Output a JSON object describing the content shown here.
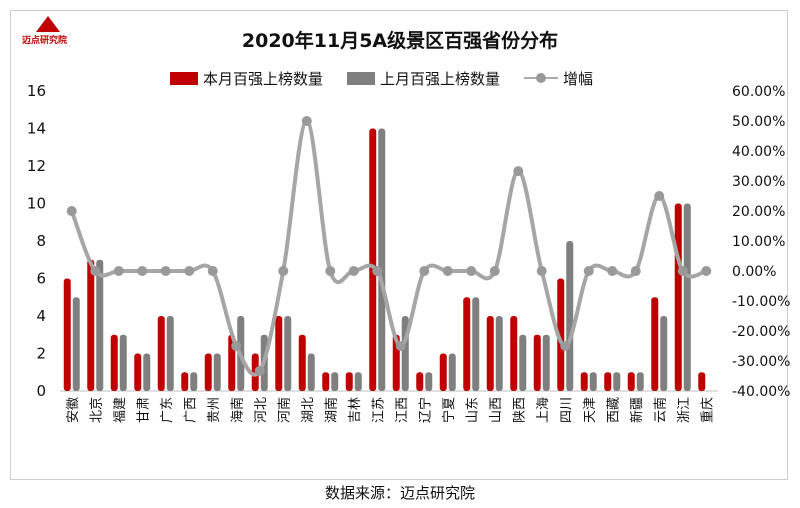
{
  "header": {
    "title": "2020年11月5A级景区百强省份分布",
    "logo_text": "迈点研究院"
  },
  "footer": {
    "source": "数据来源：迈点研究院"
  },
  "colors": {
    "current": "#c00000",
    "previous": "#7f7f7f",
    "growth_line": "#a6a6a6",
    "growth_marker": "#999999"
  },
  "chart_data": {
    "type": "bar",
    "title": "2020年11月5A级景区百强省份分布",
    "categories": [
      "安徽",
      "北京",
      "福建",
      "甘肃",
      "广东",
      "广西",
      "贵州",
      "海南",
      "河北",
      "河南",
      "湖北",
      "湖南",
      "吉林",
      "江苏",
      "江西",
      "辽宁",
      "宁夏",
      "山东",
      "山西",
      "陕西",
      "上海",
      "四川",
      "天津",
      "西藏",
      "新疆",
      "云南",
      "浙江",
      "重庆"
    ],
    "series": [
      {
        "name": "本月百强上榜数量",
        "type": "bar",
        "axis": "left",
        "values": [
          6,
          7,
          3,
          2,
          4,
          1,
          2,
          3,
          2,
          4,
          3,
          1,
          1,
          14,
          3,
          1,
          2,
          5,
          4,
          4,
          3,
          6,
          1,
          1,
          1,
          5,
          10,
          1
        ]
      },
      {
        "name": "上月百强上榜数量",
        "type": "bar",
        "axis": "left",
        "values": [
          5,
          7,
          3,
          2,
          4,
          1,
          2,
          4,
          3,
          4,
          2,
          1,
          1,
          14,
          4,
          1,
          2,
          5,
          4,
          3,
          3,
          8,
          1,
          1,
          1,
          4,
          10,
          0
        ]
      },
      {
        "name": "增幅",
        "type": "line",
        "axis": "right",
        "values": [
          0.2,
          0.0,
          0.0,
          0.0,
          0.0,
          0.0,
          0.0,
          -0.25,
          -0.333,
          0.0,
          0.5,
          0.0,
          0.0,
          0.0,
          -0.25,
          0.0,
          0.0,
          0.0,
          0.0,
          0.333,
          0.0,
          -0.25,
          0.0,
          0.0,
          0.0,
          0.25,
          0.0,
          0.0
        ]
      }
    ],
    "y_left": {
      "min": 0,
      "max": 16,
      "ticks": [
        "0",
        "2",
        "4",
        "6",
        "8",
        "10",
        "12",
        "14",
        "16"
      ]
    },
    "y_right": {
      "min": -0.4,
      "max": 0.6,
      "ticks": [
        "-40.00%",
        "-30.00%",
        "-20.00%",
        "-10.00%",
        "0.00%",
        "10.00%",
        "20.00%",
        "30.00%",
        "40.00%",
        "50.00%",
        "60.00%"
      ]
    },
    "grid": false,
    "legend_position": "top"
  }
}
